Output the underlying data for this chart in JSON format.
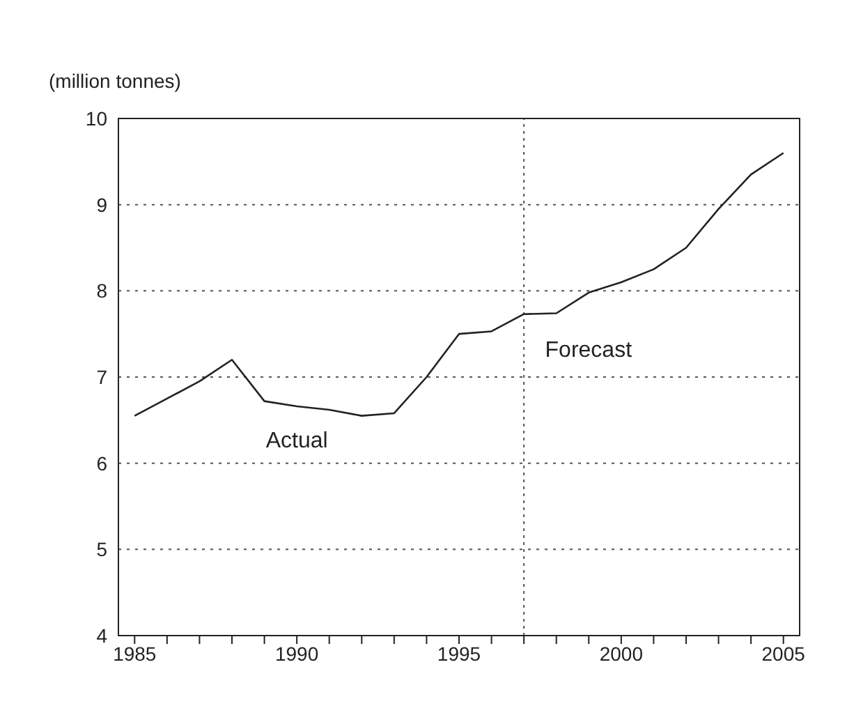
{
  "chart_data": {
    "type": "line",
    "ylabel": "(million tonnes)",
    "x": [
      1985,
      1986,
      1987,
      1988,
      1989,
      1990,
      1991,
      1992,
      1993,
      1994,
      1995,
      1996,
      1997,
      1998,
      1999,
      2000,
      2001,
      2002,
      2003,
      2004,
      2005
    ],
    "series": [
      {
        "color": "#222222",
        "values": [
          6.55,
          6.75,
          6.95,
          7.2,
          6.72,
          6.66,
          6.62,
          6.55,
          6.58,
          7.0,
          7.5,
          7.53,
          7.73,
          7.74,
          7.98,
          8.1,
          8.25,
          8.5,
          8.95,
          9.35,
          9.6
        ]
      }
    ],
    "xlim": [
      1984.5,
      2005.5
    ],
    "xticks": [
      1985,
      {
        "value": 1986,
        "label": null
      },
      {
        "value": 1987,
        "label": null
      },
      {
        "value": 1988,
        "label": null
      },
      {
        "value": 1989,
        "label": null
      },
      1990,
      {
        "value": 1991,
        "label": null
      },
      {
        "value": 1992,
        "label": null
      },
      {
        "value": 1993,
        "label": null
      },
      {
        "value": 1994,
        "label": null
      },
      1995,
      {
        "value": 1996,
        "label": null
      },
      {
        "value": 1997,
        "label": null
      },
      {
        "value": 1998,
        "label": null
      },
      {
        "value": 1999,
        "label": null
      },
      2000,
      {
        "value": 2001,
        "label": null
      },
      {
        "value": 2002,
        "label": null
      },
      {
        "value": 2003,
        "label": null
      },
      {
        "value": 2004,
        "label": null
      },
      2005
    ],
    "ylim": [
      4,
      10
    ],
    "yticks": [
      4,
      5,
      6,
      7,
      8,
      9,
      10
    ],
    "grid": "y",
    "marker": "none",
    "line_style": "solid",
    "ref_lines": [
      {
        "axis": "x",
        "value": 1997,
        "line_style": "dotted",
        "color": "#555555"
      }
    ],
    "annotations": [
      "Actual",
      "Forecast"
    ]
  }
}
